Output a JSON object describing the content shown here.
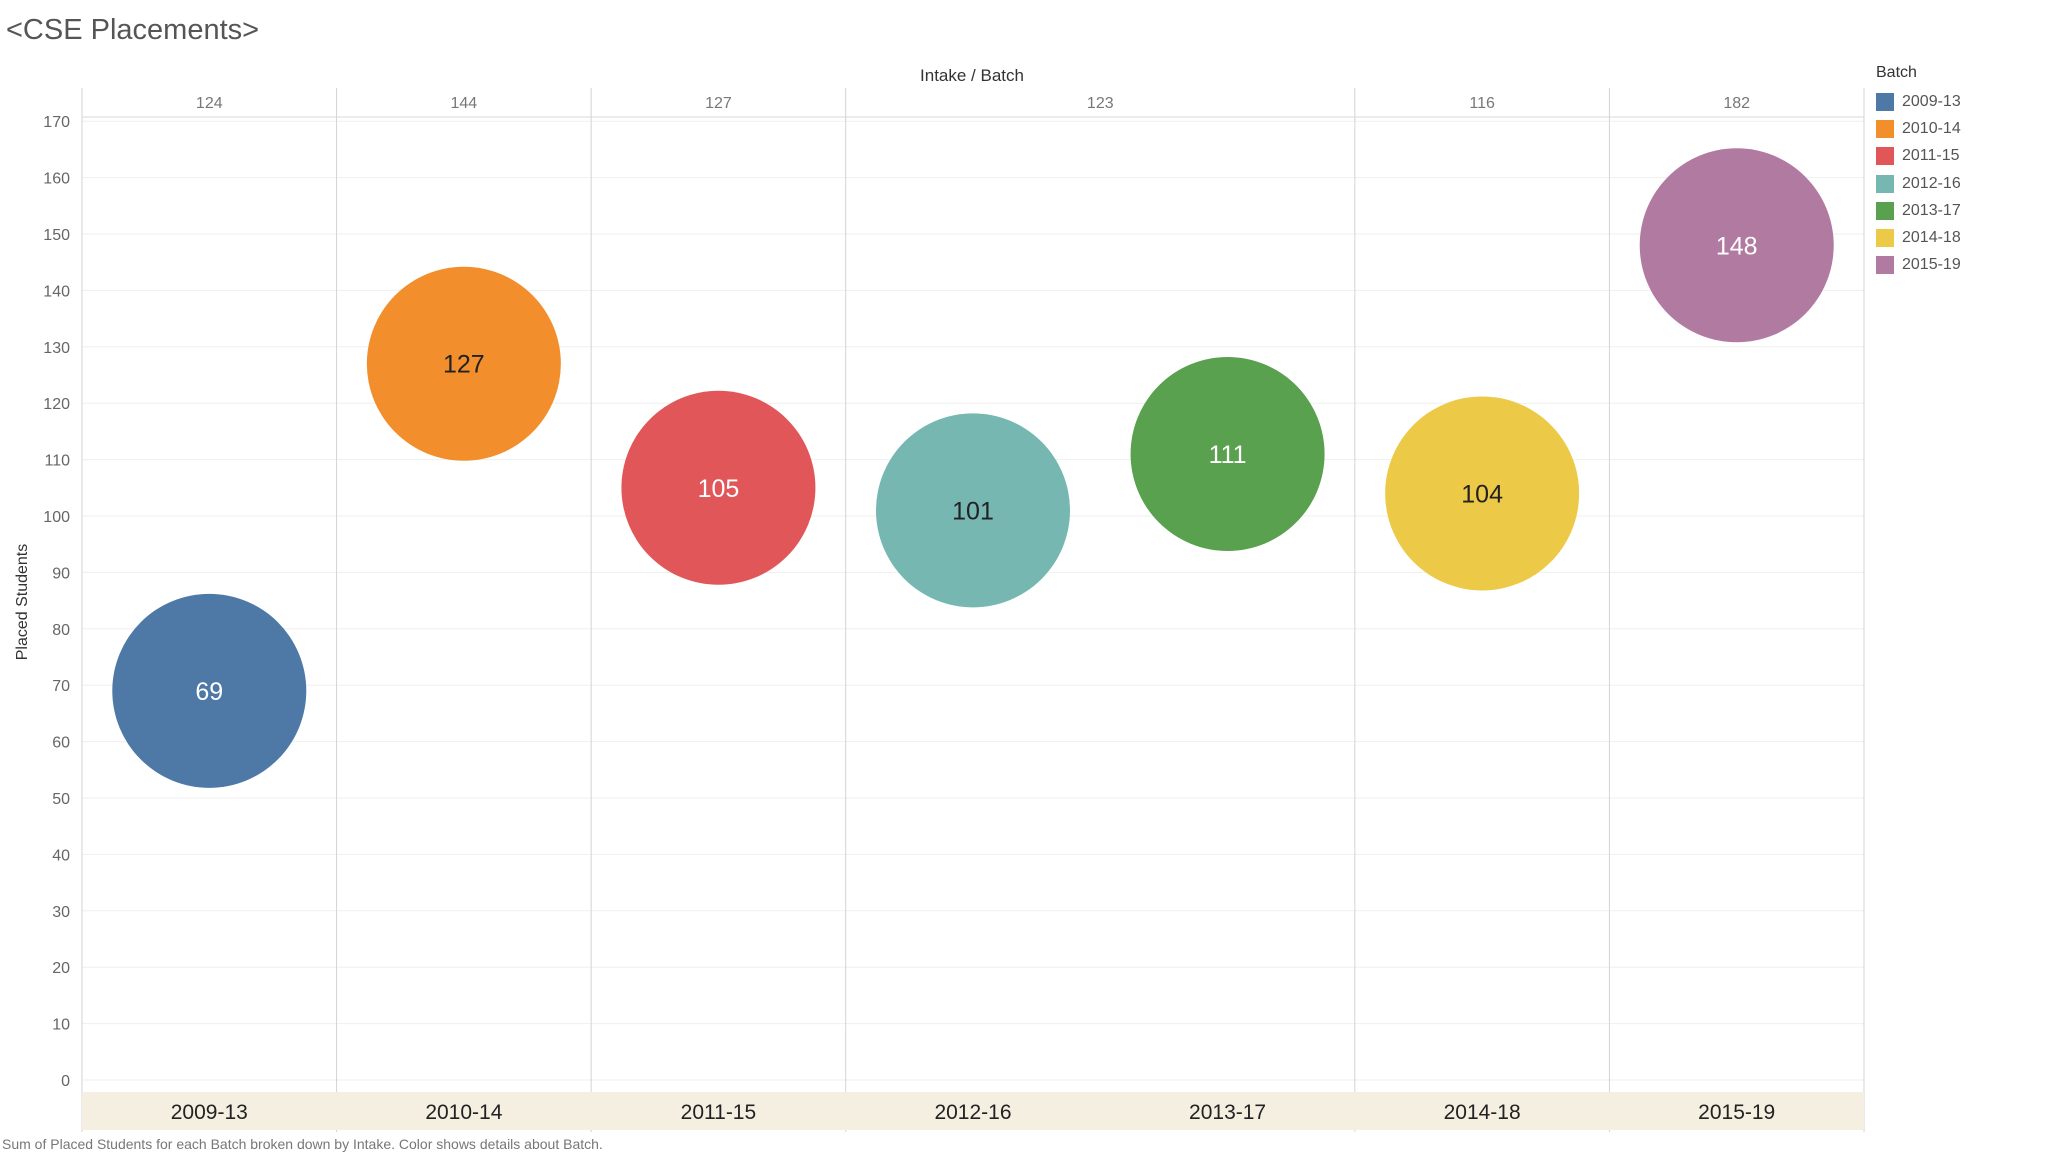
{
  "chart_data": {
    "type": "scatter",
    "title": "<CSE Placements>",
    "top_axis_title": "Intake / Batch",
    "ylabel": "Placed Students",
    "ylim": [
      0,
      175
    ],
    "yticks": [
      0,
      10,
      20,
      30,
      40,
      50,
      60,
      70,
      80,
      90,
      100,
      110,
      120,
      130,
      140,
      150,
      160,
      170
    ],
    "intake_labels": [
      "124",
      "144",
      "127",
      "123",
      "116",
      "182"
    ],
    "categories": [
      "2009-13",
      "2010-14",
      "2011-15",
      "2012-16",
      "2013-17",
      "2014-18",
      "2015-19"
    ],
    "series": [
      {
        "name": "2009-13",
        "placed": 69,
        "label": "69",
        "color": "#4e79a7",
        "label_color": "#ffffff"
      },
      {
        "name": "2010-14",
        "placed": 127,
        "label": "127",
        "color": "#f28e2b",
        "label_color": "#222222"
      },
      {
        "name": "2011-15",
        "placed": 105,
        "label": "105",
        "color": "#e15759",
        "label_color": "#ffffff"
      },
      {
        "name": "2012-16",
        "placed": 101,
        "label": "101",
        "color": "#76b7b2",
        "label_color": "#222222"
      },
      {
        "name": "2013-17",
        "placed": 111,
        "label": "111",
        "color": "#59a14f",
        "label_color": "#ffffff"
      },
      {
        "name": "2014-18",
        "placed": 104,
        "label": "104",
        "color": "#edc948",
        "label_color": "#222222"
      },
      {
        "name": "2015-19",
        "placed": 148,
        "label": "148",
        "color": "#b07aa1",
        "label_color": "#ffffff"
      }
    ],
    "legend": {
      "title": "Batch",
      "position": "top-right"
    },
    "grid": true,
    "caption": "Sum of Placed Students for each Batch broken down by Intake.  Color shows details about Batch."
  }
}
